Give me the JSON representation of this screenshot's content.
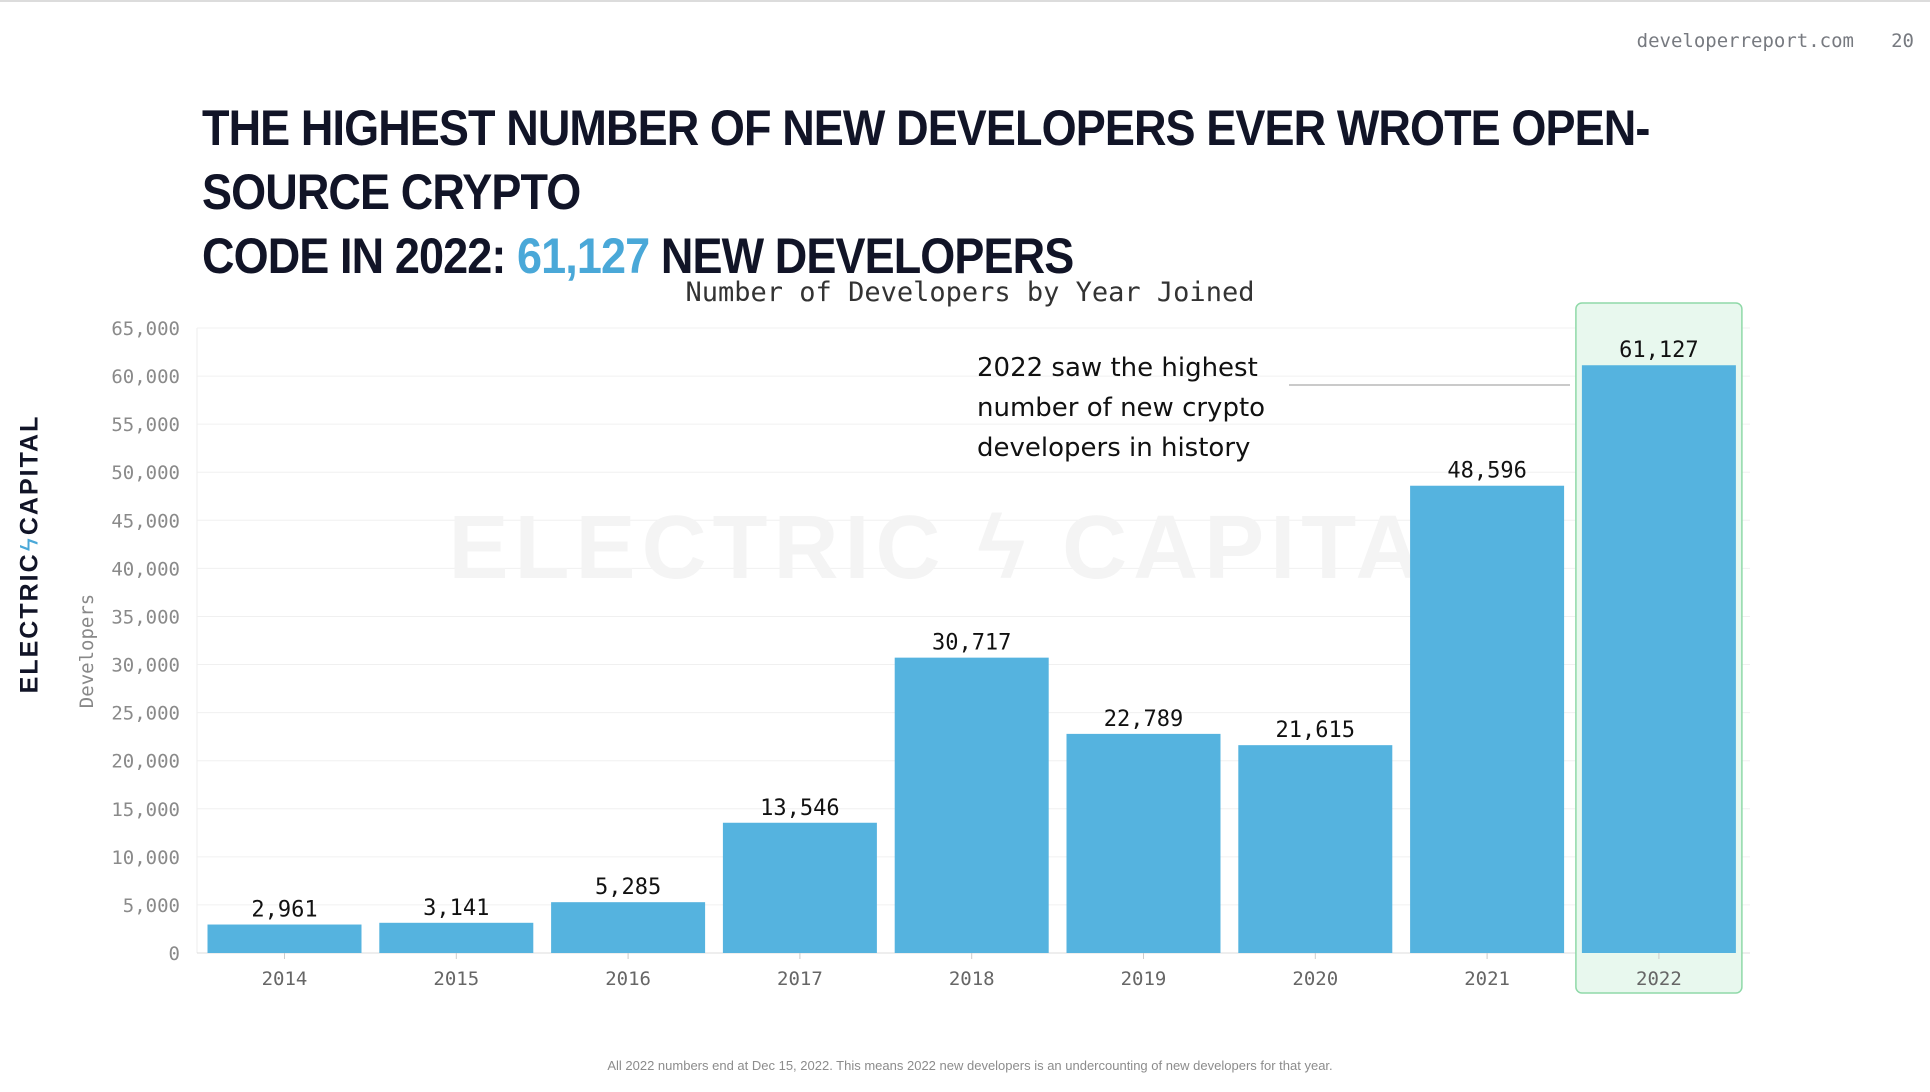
{
  "header": {
    "site_url": "developerreport.com",
    "page_number": "20"
  },
  "headline": {
    "line1": "THE HIGHEST NUMBER OF NEW DEVELOPERS EVER WROTE OPEN-SOURCE CRYPTO",
    "line2_prefix": "CODE IN 2022: ",
    "highlight": "61,127",
    "line2_suffix": " NEW DEVELOPERS"
  },
  "logo": {
    "left": "ELECTRIC",
    "bolt": "ϟ",
    "right": "CAPITAL"
  },
  "watermark": "ELECTRIC ϟ CAPITAL",
  "annotation": {
    "lines": [
      "2022 saw the highest",
      "number of new crypto",
      "developers in history"
    ]
  },
  "footnote": "All 2022 numbers end at Dec 15, 2022. This means 2022 new developers is an undercounting of new developers for that year.",
  "colors": {
    "bar": "#55b3df",
    "highlight_fill": "#e8f8ee",
    "highlight_stroke": "#8fd9a8",
    "accent": "#4aa8d8",
    "title_text": "#111427"
  },
  "chart_data": {
    "type": "bar",
    "title": "Number of Developers by Year Joined",
    "xlabel": "",
    "ylabel": "Developers",
    "categories": [
      "2014",
      "2015",
      "2016",
      "2017",
      "2018",
      "2019",
      "2020",
      "2021",
      "2022"
    ],
    "values": [
      2961,
      3141,
      5285,
      13546,
      30717,
      22789,
      21615,
      48596,
      61127
    ],
    "value_labels": [
      "2,961",
      "3,141",
      "5,285",
      "13,546",
      "30,717",
      "22,789",
      "21,615",
      "48,596",
      "61,127"
    ],
    "yticks": [
      0,
      5000,
      10000,
      15000,
      20000,
      25000,
      30000,
      35000,
      40000,
      45000,
      50000,
      55000,
      60000,
      65000
    ],
    "ytick_labels": [
      "0",
      "5,000",
      "10,000",
      "15,000",
      "20,000",
      "25,000",
      "30,000",
      "35,000",
      "40,000",
      "45,000",
      "50,000",
      "55,000",
      "60,000",
      "65,000"
    ],
    "ylim": [
      0,
      65000
    ],
    "grid": true,
    "highlighted_category": "2022"
  }
}
